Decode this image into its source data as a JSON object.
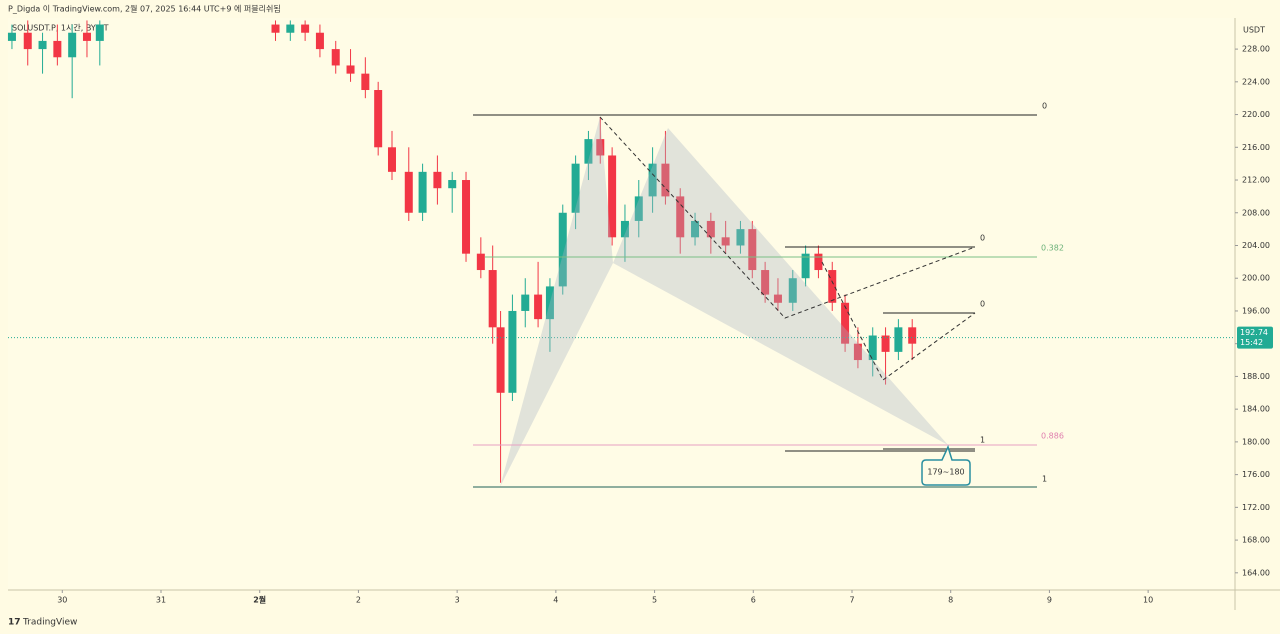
{
  "header": "P_Digda 이 TradingView.com, 2월 07, 2025 16:44 UTC+9 에 퍼블리쉬됨",
  "footer": "TradingView",
  "chart_data": {
    "type": "candlestick",
    "symbol": "SOLUSDT.P, 1시간, BYBIT",
    "currency": "USDT",
    "up_color": "#22ab94",
    "down_color": "#f23645",
    "x": [
      -0.51,
      -0.35,
      -0.2,
      -0.05,
      0.1,
      0.25,
      0.38,
      2.16,
      2.31,
      2.46,
      2.61,
      2.77,
      2.92,
      3.07,
      3.2,
      3.34,
      3.51,
      3.65,
      3.8,
      3.95,
      4.09,
      4.24,
      4.36,
      4.44,
      4.56,
      4.69,
      4.82,
      4.94,
      5.07,
      5.2,
      5.33,
      5.45,
      5.57,
      5.7,
      5.84,
      5.98,
      6.11,
      6.26,
      6.41,
      6.57,
      6.72,
      6.87,
      6.99,
      7.12,
      7.25,
      7.4,
      7.53,
      7.66,
      7.8,
      7.93,
      8.06,
      8.21,
      8.34,
      8.47,
      8.61
    ],
    "open": [
      229,
      230,
      228,
      229,
      227,
      230,
      229,
      231,
      230,
      231,
      230,
      228,
      226,
      225,
      223,
      216,
      213,
      208,
      213,
      211,
      212,
      203,
      201,
      194,
      186,
      196,
      198,
      195,
      199,
      208,
      214,
      217,
      215,
      205,
      207,
      210,
      214,
      210,
      205,
      207,
      205,
      204,
      206,
      201,
      198,
      197,
      200,
      203,
      201,
      197,
      192,
      190,
      193,
      191,
      194
    ],
    "high": [
      231,
      231.5,
      230,
      231,
      231,
      231.5,
      231.5,
      231.5,
      231.5,
      231.5,
      231,
      229,
      228,
      227,
      224,
      218,
      216,
      214,
      215,
      213,
      213,
      205,
      204,
      196,
      198,
      200,
      202,
      200,
      209,
      215,
      218,
      219.7,
      216,
      209,
      212,
      216,
      218,
      211,
      208,
      208,
      207,
      207,
      207,
      202,
      200,
      201,
      204,
      204,
      202,
      198,
      194,
      194,
      194,
      195,
      195
    ],
    "low": [
      228,
      226,
      225,
      226,
      222,
      227,
      226,
      229,
      229,
      229,
      227,
      225,
      224,
      222,
      215,
      212,
      207,
      207,
      209,
      208,
      202,
      200,
      192,
      175,
      185,
      194,
      194,
      191,
      198,
      206,
      212,
      214,
      204,
      202,
      205,
      208,
      209,
      203,
      204,
      203,
      203,
      203,
      200,
      197,
      196,
      196,
      199,
      200,
      196,
      191,
      189,
      188,
      187,
      190,
      190
    ],
    "close": [
      230,
      228,
      229,
      227,
      230,
      229,
      231,
      230,
      231,
      230,
      228,
      226,
      225,
      223,
      216,
      213,
      208,
      213,
      211,
      212,
      203,
      201,
      194,
      186,
      196,
      198,
      195,
      199,
      208,
      214,
      217,
      215,
      205,
      207,
      210,
      214,
      210,
      205,
      207,
      205,
      204,
      206,
      201,
      198,
      197,
      200,
      203,
      201,
      197,
      192,
      190,
      193,
      191,
      194,
      192
    ],
    "last_price": 192.74,
    "countdown": "15:42",
    "xlim": [
      -0.55,
      11.88
    ],
    "ylim": [
      161.9,
      231.8
    ],
    "xticks": [
      {
        "value": 0,
        "label": "30"
      },
      {
        "value": 1,
        "label": "31"
      },
      {
        "value": 2,
        "label": "2월"
      },
      {
        "value": 3,
        "label": "2"
      },
      {
        "value": 4,
        "label": "3"
      },
      {
        "value": 5,
        "label": "4"
      },
      {
        "value": 6,
        "label": "5"
      },
      {
        "value": 7,
        "label": "6"
      },
      {
        "value": 8,
        "label": "7"
      },
      {
        "value": 9,
        "label": "8"
      },
      {
        "value": 10,
        "label": "9"
      },
      {
        "value": 11,
        "label": "10"
      }
    ],
    "yticks": [
      {
        "value": 164,
        "label": "164.00"
      },
      {
        "value": 168,
        "label": "168.00"
      },
      {
        "value": 172,
        "label": "172.00"
      },
      {
        "value": 176,
        "label": "176.00"
      },
      {
        "value": 180,
        "label": "180.00"
      },
      {
        "value": 184,
        "label": "184.00"
      },
      {
        "value": 188,
        "label": "188.00"
      },
      {
        "value": 192,
        "label": "192.00"
      },
      {
        "value": 196,
        "label": "196.00"
      },
      {
        "value": 200,
        "label": "200.00"
      },
      {
        "value": 204,
        "label": "204.00"
      },
      {
        "value": 208,
        "label": "208.00"
      },
      {
        "value": 212,
        "label": "212.00"
      },
      {
        "value": 216,
        "label": "216.00"
      },
      {
        "value": 220,
        "label": "220.00"
      },
      {
        "value": 224,
        "label": "224.00"
      },
      {
        "value": 228,
        "label": "228.00"
      }
    ],
    "annotations": {
      "top_zero": "0",
      "bottom_one": "1",
      "fib_382": "0.382",
      "fib_886": "0.886",
      "leg1_zero": "0",
      "leg2_zero": "0",
      "leg_one": "1",
      "target": "179~180"
    }
  }
}
